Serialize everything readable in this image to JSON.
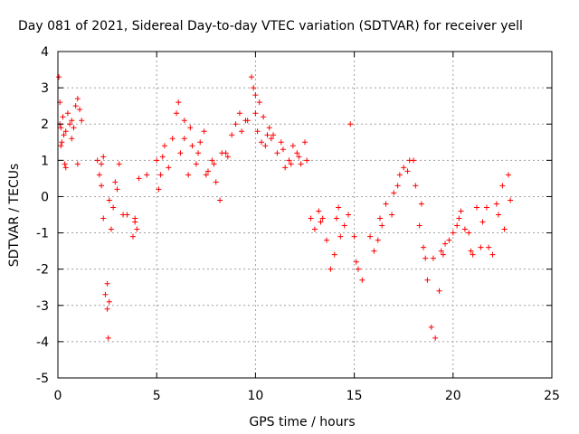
{
  "chart_data": {
    "type": "scatter",
    "title": "Day 081 of 2021, Sidereal Day-to-day VTEC variation (SDTVAR) for receiver yell",
    "xlabel": "GPS time / hours",
    "ylabel": "SDTVAR / TECUs",
    "xlim": [
      0,
      25
    ],
    "ylim": [
      -5,
      4
    ],
    "xticks": [
      0,
      5,
      10,
      15,
      20,
      25
    ],
    "yticks": [
      -5,
      -4,
      -3,
      -2,
      -1,
      0,
      1,
      2,
      3,
      4
    ],
    "grid": true,
    "marker": "+",
    "colors": {
      "series": "#ff0000",
      "axis": "#000000",
      "grid": "#a0a0a0"
    },
    "series": [
      {
        "name": "SDTVAR",
        "x": [
          0.05,
          0.1,
          0.15,
          0.2,
          0.25,
          0.3,
          0.35,
          0.4,
          0.5,
          0.6,
          0.7,
          0.8,
          0.9,
          1.0,
          1.1,
          1.2,
          2.0,
          2.1,
          2.2,
          2.3,
          2.4,
          2.5,
          2.6,
          2.7,
          2.8,
          2.9,
          3.0,
          3.5,
          3.8,
          3.9,
          4.0,
          4.5,
          5.0,
          5.2,
          5.4,
          5.6,
          5.8,
          6.0,
          6.2,
          6.4,
          6.6,
          6.8,
          7.0,
          7.2,
          7.4,
          7.6,
          7.8,
          8.0,
          8.2,
          8.5,
          8.8,
          9.0,
          9.3,
          9.6,
          9.8,
          10.0,
          10.1,
          10.2,
          10.3,
          10.4,
          10.5,
          10.7,
          10.9,
          11.1,
          11.3,
          11.5,
          11.7,
          11.9,
          12.1,
          12.3,
          12.5,
          12.8,
          13.0,
          13.3,
          13.6,
          13.8,
          14.0,
          14.3,
          14.5,
          14.7,
          15.0,
          15.2,
          15.4,
          15.8,
          16.0,
          16.3,
          16.6,
          16.9,
          17.2,
          17.5,
          17.8,
          18.1,
          18.3,
          18.5,
          18.7,
          18.9,
          19.1,
          19.3,
          19.5,
          19.8,
          20.0,
          20.3,
          20.6,
          20.9,
          21.2,
          21.5,
          21.8,
          22.0,
          22.3,
          22.6,
          22.9,
          0.15,
          0.4,
          0.7,
          2.3,
          2.5,
          2.6,
          3.1,
          3.9,
          5.3,
          6.1,
          6.7,
          7.5,
          8.3,
          9.2,
          9.9,
          10.6,
          11.4,
          12.2,
          13.2,
          14.1,
          14.8,
          16.2,
          17.0,
          17.7,
          18.4,
          19.0,
          19.6,
          20.4,
          21.0,
          21.7,
          22.5,
          0.1,
          1.0,
          2.2,
          2.55,
          3.3,
          4.1,
          5.1,
          6.4,
          7.1,
          7.9,
          8.6,
          9.5,
          10.0,
          10.8,
          11.8,
          12.6,
          13.4,
          14.2,
          15.1,
          16.4,
          17.3,
          18.0,
          18.6,
          19.4,
          20.2,
          20.8,
          21.4,
          22.2,
          22.8
        ],
        "y": [
          3.3,
          2.6,
          1.9,
          1.5,
          2.2,
          1.7,
          0.9,
          1.8,
          2.3,
          2.0,
          1.6,
          1.9,
          2.5,
          2.7,
          2.4,
          2.1,
          1.0,
          0.6,
          0.9,
          -0.6,
          -2.7,
          -3.1,
          -0.1,
          -0.9,
          -0.3,
          0.4,
          0.2,
          -0.5,
          -1.1,
          -0.7,
          -0.9,
          0.6,
          1.0,
          0.6,
          1.4,
          0.8,
          1.6,
          2.3,
          1.2,
          2.1,
          0.6,
          1.4,
          0.9,
          1.5,
          1.8,
          0.7,
          1.0,
          0.4,
          -0.1,
          1.2,
          1.7,
          2.0,
          1.8,
          2.1,
          3.3,
          2.3,
          1.8,
          2.6,
          1.5,
          2.2,
          1.4,
          1.9,
          1.7,
          1.2,
          1.5,
          0.8,
          1.0,
          1.4,
          1.2,
          0.9,
          1.5,
          -0.6,
          -0.9,
          -0.7,
          -1.2,
          -2.0,
          -1.6,
          -1.1,
          -0.8,
          -0.5,
          -1.1,
          -2.0,
          -2.3,
          -1.1,
          -1.5,
          -0.6,
          -0.2,
          -0.5,
          0.3,
          0.8,
          1.0,
          0.3,
          -0.8,
          -1.4,
          -2.3,
          -3.6,
          -3.9,
          -2.6,
          -1.6,
          -1.2,
          -1.0,
          -0.6,
          -0.9,
          -1.5,
          -0.3,
          -0.7,
          -1.4,
          -1.6,
          -0.5,
          -0.9,
          -0.1,
          1.4,
          0.8,
          2.1,
          1.1,
          -2.4,
          -2.9,
          0.9,
          -0.6,
          1.1,
          2.6,
          1.9,
          0.6,
          1.2,
          2.3,
          3.0,
          1.7,
          1.3,
          1.1,
          -0.4,
          -0.6,
          2.0,
          -1.2,
          0.1,
          0.7,
          -0.2,
          -1.7,
          -1.3,
          -0.4,
          -1.6,
          -0.3,
          0.3,
          2.0,
          0.9,
          0.3,
          -3.9,
          -0.5,
          0.5,
          0.2,
          1.6,
          1.2,
          0.9,
          1.1,
          2.1,
          2.8,
          1.6,
          0.9,
          1.0,
          -0.6,
          -0.3,
          -1.8,
          -0.8,
          0.6,
          1.0,
          -1.7,
          -1.5,
          -0.8,
          -1.0,
          -1.4,
          -0.2,
          0.6
        ]
      }
    ]
  }
}
